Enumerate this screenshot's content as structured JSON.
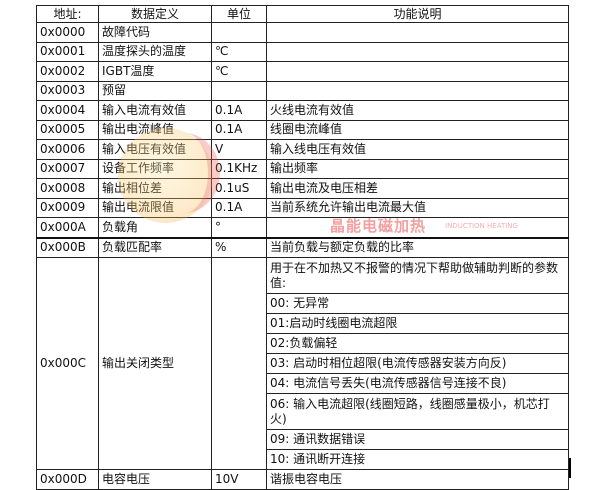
{
  "header": {
    "address": "地址:",
    "definition": "数据定义",
    "unit": "单位",
    "description": "功能说明"
  },
  "rows": [
    {
      "address": "0x0000",
      "definition": "故障代码",
      "unit": "",
      "description": ""
    },
    {
      "address": "0x0001",
      "definition": "温度探头的温度",
      "unit": "℃",
      "description": ""
    },
    {
      "address": "0x0002",
      "definition": "IGBT温度",
      "unit": "℃",
      "description": ""
    },
    {
      "address": "0x0003",
      "definition": "预留",
      "unit": "",
      "description": ""
    },
    {
      "address": "0x0004",
      "definition": "输入电流有效值",
      "unit": "0.1A",
      "description": "火线电流有效值"
    },
    {
      "address": "0x0005",
      "definition": "输出电流峰值",
      "unit": "0.1A",
      "description": "线圈电流峰值"
    },
    {
      "address": "0x0006",
      "definition": "输入电压有效值",
      "unit": "V",
      "description": "输入线电压有效值"
    },
    {
      "address": "0x0007",
      "definition": "设备工作频率",
      "unit": "0.1KHz",
      "description": "输出频率"
    },
    {
      "address": "0x0008",
      "definition": "输出相位差",
      "unit": "0.1uS",
      "description": "输出电流及电压相差"
    },
    {
      "address": "0x0009",
      "definition": "输出电流限值",
      "unit": "0.1A",
      "description": "当前系统允许输出电流最大值"
    },
    {
      "address": "0x000A",
      "definition": "负载角",
      "unit": "°",
      "description": ""
    },
    {
      "address": "0x000B",
      "definition": "负载匹配率",
      "unit": "%",
      "description": "当前负载与额定负载的比率"
    }
  ],
  "close_type": {
    "address": "0x000C",
    "definition": "输出关闭类型",
    "unit": "",
    "items": [
      "用于在不加热又不报警的情况下帮助做辅助判断的参数值:",
      "00: 无异常",
      "01:启动时线圈电流超限",
      "02:负载偏轻",
      "03: 启动时相位超限(电流传感器安装方向反)",
      "04: 电流信号丢失(电流传感器信号连接不良)",
      "06: 输入电流超限(线圈短路，线圈感量极小，机芯打火)",
      "09: 通讯数据错误",
      "10: 通讯断开连接"
    ]
  },
  "last_row": {
    "address": "0x000D",
    "definition": "电容电压",
    "unit": "10V",
    "description": "谐振电容电压"
  },
  "watermark": {
    "cn": "晶能电磁加热",
    "en": "INDUCTION HEATING"
  }
}
